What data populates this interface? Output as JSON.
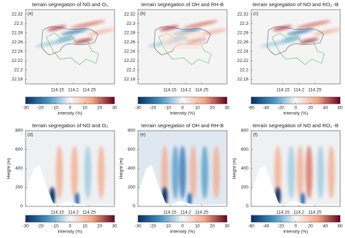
{
  "chart_data": [
    {
      "type": "heatmap",
      "title": "terrain segregation of NO and O₃",
      "panel_label": "(a)",
      "xlim": [
        114.05,
        114.33
      ],
      "xticks": [
        114.15,
        114.2,
        114.25
      ],
      "ylim": [
        22.17,
        22.33
      ],
      "yticks": [
        22.18,
        22.2,
        22.22,
        22.24,
        22.26,
        22.28,
        22.3,
        22.32
      ],
      "colorbar": {
        "label": "intensity (%)",
        "lim": [
          -30,
          30
        ],
        "ticks": [
          -30,
          -20,
          -10,
          0,
          10,
          20,
          30
        ],
        "colors": [
          "#053061",
          "#4393c3",
          "#f7f7f7",
          "#f4a582",
          "#67001f"
        ]
      }
    },
    {
      "type": "heatmap",
      "title": "terrain segregation of OH and RH-B",
      "panel_label": "(b)",
      "xlim": [
        114.05,
        114.33
      ],
      "xticks": [
        114.15,
        114.2,
        114.25
      ],
      "ylim": [
        22.17,
        22.33
      ],
      "yticks": [
        22.18,
        22.2,
        22.22,
        22.24,
        22.26,
        22.28,
        22.3,
        22.32
      ],
      "colorbar": {
        "label": "intensity (%)",
        "lim": [
          -30,
          30
        ],
        "ticks": [
          -30,
          -20,
          -10,
          0,
          10,
          20,
          30
        ],
        "colors": [
          "#053061",
          "#4393c3",
          "#f7f7f7",
          "#f4a582",
          "#67001f"
        ]
      }
    },
    {
      "type": "heatmap",
      "title": "terrain segregation of NO and RO₂ -B",
      "panel_label": "(c)",
      "xlim": [
        114.05,
        114.33
      ],
      "xticks": [
        114.15,
        114.2,
        114.25
      ],
      "ylim": [
        22.17,
        22.33
      ],
      "yticks": [
        22.18,
        22.2,
        22.22,
        22.24,
        22.26,
        22.28,
        22.3,
        22.32
      ],
      "colorbar": {
        "label": "intensity (%)",
        "lim": [
          -60,
          60
        ],
        "ticks": [
          -60,
          -40,
          -20,
          0,
          20,
          40,
          60
        ],
        "colors": [
          "#053061",
          "#4393c3",
          "#f7f7f7",
          "#f4a582",
          "#67001f"
        ]
      }
    },
    {
      "type": "heatmap",
      "title": "terrain segregation of NO and O₃",
      "panel_label": "(d)",
      "ylabel": "Height (m)",
      "xlim": [
        114.05,
        114.33
      ],
      "xticks": [
        114.15,
        114.2,
        114.25
      ],
      "ylim": [
        0,
        800
      ],
      "yticks": [
        0,
        200,
        400,
        600,
        800
      ],
      "colorbar": {
        "label": "intensity (%)",
        "lim": [
          -30,
          30
        ],
        "ticks": [
          -30,
          -20,
          -10,
          0,
          10,
          20,
          30
        ],
        "colors": [
          "#053061",
          "#4393c3",
          "#f7f7f7",
          "#f4a582",
          "#67001f"
        ]
      }
    },
    {
      "type": "heatmap",
      "title": "terrain segregation of OH and RH-B",
      "panel_label": "(e)",
      "ylabel": "Height (m)",
      "xlim": [
        114.05,
        114.33
      ],
      "xticks": [
        114.15,
        114.2,
        114.25
      ],
      "ylim": [
        0,
        800
      ],
      "yticks": [
        0,
        200,
        400,
        600,
        800
      ],
      "colorbar": {
        "label": "intensity (%)",
        "lim": [
          -30,
          30
        ],
        "ticks": [
          -30,
          -20,
          -10,
          0,
          10,
          20,
          30
        ],
        "colors": [
          "#053061",
          "#4393c3",
          "#f7f7f7",
          "#f4a582",
          "#67001f"
        ]
      }
    },
    {
      "type": "heatmap",
      "title": "terrain segregation of NO and RO₂ -B",
      "panel_label": "(f)",
      "ylabel": "Height (m)",
      "xlim": [
        114.05,
        114.33
      ],
      "xticks": [
        114.15,
        114.2,
        114.25
      ],
      "ylim": [
        0,
        800
      ],
      "yticks": [
        0,
        200,
        400,
        600,
        800
      ],
      "colorbar": {
        "label": "intensity (%)",
        "lim": [
          -60,
          60
        ],
        "ticks": [
          -60,
          -40,
          -20,
          0,
          20,
          40,
          60
        ],
        "colors": [
          "#053061",
          "#4393c3",
          "#f7f7f7",
          "#f4a582",
          "#67001f"
        ]
      }
    }
  ]
}
